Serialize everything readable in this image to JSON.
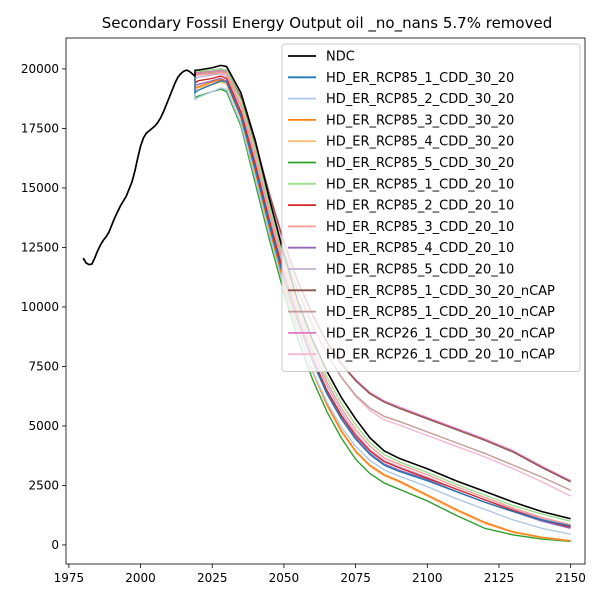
{
  "chart_data": {
    "type": "line",
    "title": "Secondary Fossil Energy Output oil _no_nans 5.7% removed",
    "xlabel": "",
    "ylabel": "",
    "xlim": [
      1974,
      2155
    ],
    "ylim": [
      -800,
      21300
    ],
    "xticks": [
      1975,
      2000,
      2025,
      2050,
      2075,
      2100,
      2125,
      2150
    ],
    "yticks": [
      0,
      2500,
      5000,
      7500,
      10000,
      12500,
      15000,
      17500,
      20000
    ],
    "grid": false,
    "legend_position": "top-right",
    "history": {
      "x": [
        1980,
        1981,
        1982,
        1983,
        1984,
        1985,
        1986,
        1987,
        1988,
        1989,
        1990,
        1991,
        1992,
        1993,
        1994,
        1995,
        1996,
        1997,
        1998,
        1999,
        2000,
        2001,
        2002,
        2003,
        2004,
        2005,
        2006,
        2007,
        2008,
        2009,
        2010,
        2011,
        2012,
        2013,
        2014,
        2015,
        2016,
        2017,
        2018,
        2019
      ],
      "y": [
        12050,
        11850,
        11780,
        11800,
        12050,
        12350,
        12600,
        12800,
        12950,
        13150,
        13450,
        13750,
        14000,
        14250,
        14450,
        14650,
        14950,
        15250,
        15700,
        16250,
        16750,
        17100,
        17300,
        17400,
        17500,
        17600,
        17750,
        17950,
        18200,
        18500,
        18800,
        19100,
        19400,
        19650,
        19800,
        19900,
        19950,
        19900,
        19800,
        19700
      ]
    },
    "series": [
      {
        "name": "NDC",
        "color": "#000000",
        "x": [
          2019,
          2020,
          2025,
          2028,
          2030,
          2035,
          2040,
          2045,
          2050,
          2055,
          2060,
          2065,
          2070,
          2075,
          2080,
          2085,
          2090,
          2100,
          2110,
          2120,
          2130,
          2140,
          2150
        ],
        "y": [
          19950,
          19950,
          20050,
          20150,
          20100,
          19000,
          17000,
          14500,
          12200,
          10200,
          8600,
          7300,
          6200,
          5300,
          4500,
          3950,
          3650,
          3200,
          2700,
          2250,
          1800,
          1400,
          1100
        ]
      },
      {
        "name": "HD_ER_RCP85_1_CDD_30_20",
        "color": "#1f77b4",
        "x": [
          2019,
          2020,
          2025,
          2028,
          2030,
          2035,
          2040,
          2045,
          2050,
          2055,
          2060,
          2065,
          2070,
          2075,
          2080,
          2085,
          2090,
          2100,
          2110,
          2120,
          2130,
          2140,
          2150
        ],
        "y": [
          19000,
          19100,
          19350,
          19500,
          19450,
          18000,
          15800,
          13400,
          11200,
          9300,
          7700,
          6350,
          5300,
          4450,
          3800,
          3350,
          3100,
          2700,
          2250,
          1800,
          1400,
          1050,
          800
        ]
      },
      {
        "name": "HD_ER_RCP85_2_CDD_30_20",
        "color": "#aec7e8",
        "x": [
          2019,
          2020,
          2025,
          2028,
          2030,
          2035,
          2040,
          2045,
          2050,
          2055,
          2060,
          2065,
          2070,
          2075,
          2080,
          2085,
          2090,
          2100,
          2110,
          2120,
          2130,
          2140,
          2150
        ],
        "y": [
          18700,
          18800,
          19050,
          19200,
          19150,
          17700,
          15400,
          13000,
          10800,
          8900,
          7300,
          6000,
          4950,
          4150,
          3550,
          3150,
          2900,
          2450,
          1950,
          1500,
          1050,
          700,
          450
        ]
      },
      {
        "name": "HD_ER_RCP85_3_CDD_30_20",
        "color": "#ff7f0e",
        "x": [
          2019,
          2020,
          2025,
          2028,
          2030,
          2035,
          2040,
          2045,
          2050,
          2055,
          2060,
          2065,
          2070,
          2075,
          2080,
          2085,
          2090,
          2100,
          2110,
          2120,
          2130,
          2140,
          2150
        ],
        "y": [
          19200,
          19250,
          19450,
          19550,
          19450,
          18000,
          15700,
          13300,
          11000,
          9000,
          7300,
          5900,
          4800,
          3950,
          3350,
          2950,
          2700,
          2100,
          1500,
          950,
          550,
          320,
          180
        ]
      },
      {
        "name": "HD_ER_RCP85_4_CDD_30_20",
        "color": "#ffbb78",
        "x": [
          2019,
          2020,
          2025,
          2028,
          2030,
          2035,
          2040,
          2045,
          2050,
          2055,
          2060,
          2065,
          2070,
          2075,
          2080,
          2085,
          2090,
          2100,
          2110,
          2120,
          2130,
          2140,
          2150
        ],
        "y": [
          19100,
          19200,
          19350,
          19450,
          19350,
          17900,
          15600,
          13200,
          10950,
          8950,
          7250,
          5850,
          4750,
          3900,
          3300,
          2900,
          2650,
          2050,
          1450,
          900,
          520,
          300,
          170
        ]
      },
      {
        "name": "HD_ER_RCP85_5_CDD_30_20",
        "color": "#2ca02c",
        "x": [
          2019,
          2020,
          2025,
          2028,
          2030,
          2035,
          2040,
          2045,
          2050,
          2055,
          2060,
          2065,
          2070,
          2075,
          2080,
          2085,
          2090,
          2100,
          2110,
          2120,
          2130,
          2140,
          2150
        ],
        "y": [
          18800,
          18850,
          19050,
          19150,
          19050,
          17600,
          15200,
          12800,
          10600,
          8600,
          6950,
          5600,
          4500,
          3600,
          3000,
          2600,
          2350,
          1850,
          1250,
          700,
          420,
          250,
          150
        ]
      },
      {
        "name": "HD_ER_RCP85_1_CDD_20_10",
        "color": "#98df8a",
        "x": [
          2019,
          2020,
          2025,
          2028,
          2030,
          2035,
          2040,
          2045,
          2050,
          2055,
          2060,
          2065,
          2070,
          2075,
          2080,
          2085,
          2090,
          2100,
          2110,
          2120,
          2130,
          2140,
          2150
        ],
        "y": [
          19900,
          19900,
          19950,
          20000,
          19950,
          18700,
          16600,
          14200,
          12000,
          10000,
          8400,
          7050,
          5950,
          5050,
          4300,
          3800,
          3500,
          3050,
          2550,
          2100,
          1650,
          1300,
          1000
        ]
      },
      {
        "name": "HD_ER_RCP85_2_CDD_20_10",
        "color": "#d62728",
        "x": [
          2019,
          2020,
          2025,
          2028,
          2030,
          2035,
          2040,
          2045,
          2050,
          2055,
          2060,
          2065,
          2070,
          2075,
          2080,
          2085,
          2090,
          2100,
          2110,
          2120,
          2130,
          2140,
          2150
        ],
        "y": [
          19400,
          19500,
          19600,
          19700,
          19600,
          18200,
          16000,
          13600,
          11400,
          9500,
          7850,
          6500,
          5450,
          4600,
          3950,
          3500,
          3250,
          2800,
          2350,
          1900,
          1450,
          1050,
          750
        ]
      },
      {
        "name": "HD_ER_RCP85_3_CDD_20_10",
        "color": "#ff9896",
        "x": [
          2019,
          2020,
          2025,
          2028,
          2030,
          2035,
          2040,
          2045,
          2050,
          2055,
          2060,
          2065,
          2070,
          2075,
          2080,
          2085,
          2090,
          2100,
          2110,
          2120,
          2130,
          2140,
          2150
        ],
        "y": [
          19700,
          19750,
          19800,
          19850,
          19800,
          18500,
          16400,
          14000,
          11800,
          9800,
          8200,
          6850,
          5750,
          4850,
          4150,
          3650,
          3400,
          2950,
          2450,
          2000,
          1550,
          1150,
          850
        ]
      },
      {
        "name": "HD_ER_RCP85_4_CDD_20_10",
        "color": "#9467bd",
        "x": [
          2019,
          2020,
          2025,
          2028,
          2030,
          2035,
          2040,
          2045,
          2050,
          2055,
          2060,
          2065,
          2070,
          2075,
          2080,
          2085,
          2090,
          2100,
          2110,
          2120,
          2130,
          2140,
          2150
        ],
        "y": [
          19300,
          19350,
          19500,
          19600,
          19500,
          18100,
          15900,
          13500,
          11300,
          9400,
          7750,
          6400,
          5350,
          4500,
          3850,
          3400,
          3150,
          2750,
          2250,
          1800,
          1400,
          1000,
          700
        ]
      },
      {
        "name": "HD_ER_RCP85_5_CDD_20_10",
        "color": "#c5b0d5",
        "x": [
          2019,
          2020,
          2025,
          2028,
          2030,
          2035,
          2040,
          2045,
          2050,
          2055,
          2060,
          2065,
          2070,
          2075,
          2080,
          2085,
          2090,
          2100,
          2110,
          2120,
          2130,
          2140,
          2150
        ],
        "y": [
          19600,
          19650,
          19750,
          19800,
          19700,
          18400,
          16200,
          13800,
          11600,
          9700,
          8050,
          6700,
          5600,
          4700,
          4000,
          3550,
          3300,
          2850,
          2350,
          1900,
          1500,
          1100,
          800
        ]
      },
      {
        "name": "HD_ER_RCP85_1_CDD_30_20_nCAP",
        "color": "#8c564b",
        "x": [
          2019,
          2020,
          2025,
          2028,
          2030,
          2035,
          2040,
          2045,
          2050,
          2055,
          2060,
          2065,
          2070,
          2075,
          2080,
          2085,
          2090,
          2100,
          2110,
          2120,
          2130,
          2140,
          2150
        ],
        "y": [
          19900,
          19900,
          19950,
          20000,
          19950,
          18800,
          16900,
          14700,
          12700,
          11000,
          9650,
          8500,
          7600,
          6900,
          6350,
          6000,
          5750,
          5300,
          4850,
          4400,
          3900,
          3250,
          2650
        ]
      },
      {
        "name": "HD_ER_RCP85_1_CDD_20_10_nCAP",
        "color": "#c49c94",
        "x": [
          2019,
          2020,
          2025,
          2028,
          2030,
          2035,
          2040,
          2045,
          2050,
          2055,
          2060,
          2065,
          2070,
          2075,
          2080,
          2085,
          2090,
          2100,
          2110,
          2120,
          2130,
          2140,
          2150
        ],
        "y": [
          19800,
          19800,
          19850,
          19900,
          19850,
          18700,
          16700,
          14400,
          12300,
          10600,
          9200,
          8000,
          7050,
          6300,
          5750,
          5400,
          5200,
          4750,
          4300,
          3850,
          3350,
          2850,
          2300
        ]
      },
      {
        "name": "HD_ER_RCP26_1_CDD_30_20_nCAP",
        "color": "#e377c2",
        "x": [
          2019,
          2020,
          2025,
          2028,
          2030,
          2035,
          2040,
          2045,
          2050,
          2055,
          2060,
          2065,
          2070,
          2075,
          2080,
          2085,
          2090,
          2100,
          2110,
          2120,
          2130,
          2140,
          2150
        ],
        "y": [
          19850,
          19850,
          19900,
          19950,
          19900,
          18850,
          16950,
          14750,
          12750,
          11050,
          9700,
          8550,
          7650,
          6950,
          6400,
          6050,
          5800,
          5350,
          4900,
          4450,
          3950,
          3300,
          2700
        ]
      },
      {
        "name": "HD_ER_RCP26_1_CDD_20_10_nCAP",
        "color": "#f7b6d2",
        "x": [
          2019,
          2020,
          2025,
          2028,
          2030,
          2035,
          2040,
          2045,
          2050,
          2055,
          2060,
          2065,
          2070,
          2075,
          2080,
          2085,
          2090,
          2100,
          2110,
          2120,
          2130,
          2140,
          2150
        ],
        "y": [
          19750,
          19750,
          19800,
          19850,
          19800,
          18750,
          16800,
          14550,
          12450,
          10700,
          9300,
          8050,
          7050,
          6250,
          5650,
          5250,
          5050,
          4600,
          4150,
          3700,
          3200,
          2650,
          2050
        ]
      }
    ]
  }
}
